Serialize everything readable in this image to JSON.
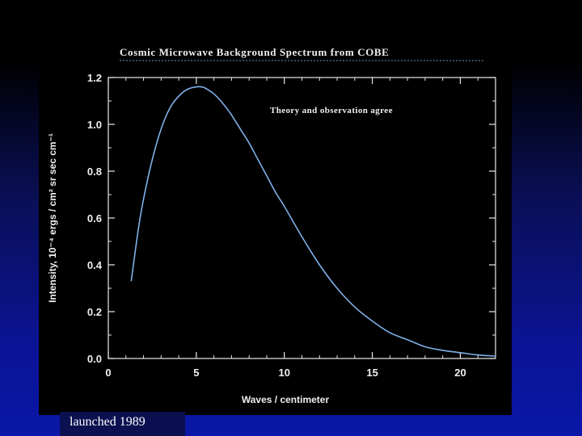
{
  "slide": {
    "caption": "launched 1989"
  },
  "chart_data": {
    "type": "line",
    "title": "Cosmic Microwave Background Spectrum from COBE",
    "annotation": "Theory and observation agree",
    "xlabel": "Waves / centimeter",
    "ylabel": "Intensity, 10⁻⁴ ergs / cm² sr sec cm⁻¹",
    "xlim": [
      0,
      22
    ],
    "ylim": [
      0,
      1.2
    ],
    "xticks": [
      0,
      5,
      10,
      15,
      20
    ],
    "xtick_labels": [
      "0",
      "5",
      "10",
      "15",
      "20"
    ],
    "yticks": [
      0,
      0.2,
      0.4,
      0.6,
      0.8,
      1.0,
      1.2
    ],
    "ytick_labels": [
      "0.0",
      "0.2",
      "0.4",
      "0.6",
      "0.8",
      "1.0",
      "1.2"
    ],
    "grid": false,
    "colors": {
      "curve": "#7fb0e8",
      "axes": "#e8e8e8",
      "text": "#f0f0f0"
    },
    "series": [
      {
        "x": [
          1.3,
          1.7,
          2.0,
          2.5,
          3.0,
          3.5,
          4.0,
          4.5,
          5.0,
          5.3,
          5.5,
          6.0,
          6.5,
          7.0,
          7.5,
          8.0,
          8.5,
          9.0,
          9.5,
          10.0,
          11.0,
          12.0,
          13.0,
          14.0,
          15.0,
          16.0,
          17.0,
          18.0,
          19.0,
          20.0,
          21.0,
          22.0
        ],
        "y": [
          0.33,
          0.55,
          0.68,
          0.85,
          0.98,
          1.07,
          1.12,
          1.15,
          1.16,
          1.16,
          1.155,
          1.13,
          1.09,
          1.04,
          0.98,
          0.92,
          0.85,
          0.78,
          0.71,
          0.65,
          0.52,
          0.4,
          0.3,
          0.22,
          0.16,
          0.11,
          0.08,
          0.05,
          0.035,
          0.025,
          0.015,
          0.01
        ]
      }
    ]
  }
}
